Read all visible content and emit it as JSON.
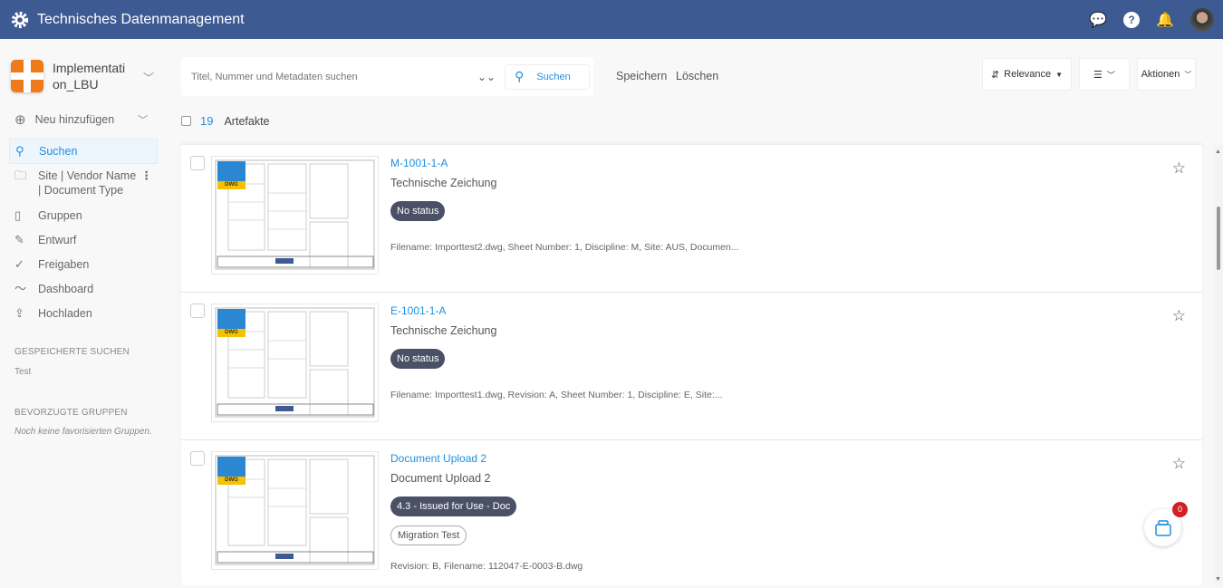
{
  "header": {
    "title": "Technisches Datenmanagement",
    "icons": [
      "gear-logo-icon",
      "chat-icon",
      "help-icon",
      "bell-icon",
      "avatar"
    ]
  },
  "sidebar": {
    "workspace": "Implementation_LBU",
    "new_label": "Neu hinzufügen",
    "items": [
      {
        "label": "Suchen",
        "icon": "search-icon",
        "active": true
      },
      {
        "label": "Site | Vendor Name | Document Type",
        "icon": "folder-icon"
      },
      {
        "label": "Gruppen",
        "icon": "book-icon"
      },
      {
        "label": "Entwurf",
        "icon": "pencil-icon"
      },
      {
        "label": "Freigaben",
        "icon": "check-icon"
      },
      {
        "label": "Dashboard",
        "icon": "chart-line-icon"
      },
      {
        "label": "Hochladen",
        "icon": "upload-icon"
      }
    ],
    "saved_searches_title": "GESPEICHERTE SUCHEN",
    "saved_searches": [
      "Test"
    ],
    "fav_groups_title": "BEVORZUGTE GRUPPEN",
    "fav_groups_empty": "Noch keine favorisierten Gruppen."
  },
  "search": {
    "placeholder": "Titel, Nummer und Metadaten suchen",
    "button": "Suchen",
    "save": "Speichern",
    "clear": "Löschen"
  },
  "toolbar": {
    "sort": "Relevance",
    "actions": "Aktionen"
  },
  "results": {
    "count": "19",
    "label": "Artefakte"
  },
  "items": [
    {
      "title": "M-1001-1-A",
      "type": "Technische Zeichung",
      "status": "No status",
      "tags": [],
      "meta": "Filename: Importtest2.dwg, Sheet Number: 1, Discipline: M, Site: AUS, Documen...",
      "thumb_label": "DWG"
    },
    {
      "title": "E-1001-1-A",
      "type": "Technische Zeichung",
      "status": "No status",
      "tags": [],
      "meta": "Filename: Importtest1.dwg, Revision: A, Sheet Number: 1, Discipline: E, Site:...",
      "thumb_label": "DWG"
    },
    {
      "title": "Document Upload 2",
      "type": "Document Upload 2",
      "status": "4.3 - Issued for Use - Doc",
      "tags": [
        "Migration Test"
      ],
      "meta": "Revision: B, Filename: 112047-E-0003-B.dwg",
      "thumb_label": "DWG"
    }
  ],
  "cart": {
    "count": "0"
  },
  "colors": {
    "header": "#3d5a92",
    "accent": "#1d8fe0",
    "badge": "#4a5166",
    "workspace": "#ef7a1a",
    "cart_badge": "#d11f26"
  }
}
